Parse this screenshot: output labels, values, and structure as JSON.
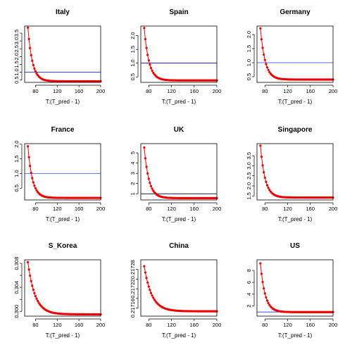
{
  "chart_data": [
    {
      "type": "scatter",
      "title": "Italy",
      "xlabel": "T:(T_pred - 1)",
      "ylabel": "",
      "xlim": [
        60,
        200
      ],
      "ylim": [
        0.35,
        3.95
      ],
      "xticks": [
        80,
        120,
        160,
        200
      ],
      "yticks": [
        0.5,
        1.0,
        1.5,
        2.0,
        2.5,
        3.0,
        3.5
      ],
      "ytick_labels": [
        "0.5",
        "1.0",
        "1.5",
        "2.0",
        "2.5",
        "3.0",
        "3.5"
      ],
      "ref_line": 1.0,
      "ref_line_color": "#3b4bd8",
      "x_start": 66,
      "x_end": 200,
      "y_start": 3.85,
      "y_end": 0.42,
      "decay": 0.12
    },
    {
      "type": "scatter",
      "title": "Spain",
      "xlabel": "T:(T_pred - 1)",
      "ylabel": "",
      "xlim": [
        66,
        200
      ],
      "ylim": [
        0.3,
        2.35
      ],
      "xticks": [
        80,
        120,
        160,
        200
      ],
      "yticks": [
        0.5,
        1.0,
        1.5,
        2.0
      ],
      "ytick_labels": [
        "0.5",
        "1.0",
        "1.5",
        "2.0"
      ],
      "ref_line": 1.0,
      "ref_line_color": "#1b1bb0",
      "x_start": 72,
      "x_end": 200,
      "y_start": 2.28,
      "y_end": 0.37,
      "decay": 0.12
    },
    {
      "type": "scatter",
      "title": "Germany",
      "xlabel": "T:(T_pred - 1)",
      "ylabel": "",
      "xlim": [
        66,
        200
      ],
      "ylim": [
        0.3,
        2.3
      ],
      "xticks": [
        80,
        120,
        160,
        200
      ],
      "yticks": [
        0.5,
        1.0,
        1.5,
        2.0
      ],
      "ytick_labels": [
        "0.5",
        "1.0",
        "1.5",
        "2.0"
      ],
      "ref_line": 1.0,
      "ref_line_color": "#5b6ff0",
      "x_start": 72,
      "x_end": 200,
      "y_start": 2.22,
      "y_end": 0.4,
      "decay": 0.12
    },
    {
      "type": "scatter",
      "title": "France",
      "xlabel": "T:(T_pred - 1)",
      "ylabel": "",
      "xlim": [
        60,
        200
      ],
      "ylim": [
        0.1,
        2.02
      ],
      "xticks": [
        80,
        120,
        160,
        200
      ],
      "yticks": [
        0.5,
        1.0,
        1.5,
        2.0
      ],
      "ytick_labels": [
        "0.5",
        "1.0",
        "1.5",
        "2.0"
      ],
      "ref_line": 1.0,
      "ref_line_color": "#6a7ef0",
      "x_start": 66,
      "x_end": 200,
      "y_start": 1.93,
      "y_end": 0.17,
      "decay": 0.12
    },
    {
      "type": "scatter",
      "title": "UK",
      "xlabel": "T:(T_pred - 1)",
      "ylabel": "",
      "xlim": [
        66,
        200
      ],
      "ylim": [
        0.4,
        5.9
      ],
      "xticks": [
        80,
        120,
        160,
        200
      ],
      "yticks": [
        1,
        2,
        3,
        4,
        5
      ],
      "ytick_labels": [
        "1",
        "2",
        "3",
        "4",
        "5"
      ],
      "ref_line": 1.0,
      "ref_line_color": "#1a1a3a",
      "x_start": 72,
      "x_end": 200,
      "y_start": 5.52,
      "y_end": 0.58,
      "decay": 0.12
    },
    {
      "type": "scatter",
      "title": "Singapore",
      "xlabel": "T:(T_pred - 1)",
      "ylabel": "",
      "xlim": [
        66,
        200
      ],
      "ylim": [
        1.3,
        4.1
      ],
      "xticks": [
        80,
        120,
        160,
        200
      ],
      "yticks": [
        1.5,
        2.0,
        2.5,
        3.0,
        3.5
      ],
      "ytick_labels": [
        "1.5",
        "2.0",
        "2.5",
        "3.0",
        "3.5"
      ],
      "x_start": 72,
      "x_end": 200,
      "y_start": 4.0,
      "y_end": 1.42,
      "decay": 0.12
    },
    {
      "type": "scatter",
      "title": "S_Korea",
      "xlabel": "T:(T_pred - 1)",
      "ylabel": "",
      "xlim": [
        60,
        200
      ],
      "ylim": [
        0.2992,
        0.3086
      ],
      "xticks": [
        80,
        120,
        160,
        200
      ],
      "yticks": [
        0.3,
        0.302,
        0.304,
        0.306,
        0.308
      ],
      "ytick_labels": [
        "0.300",
        "",
        "0.304",
        "",
        "0.308"
      ],
      "x_start": 66,
      "x_end": 200,
      "y_start": 0.3082,
      "y_end": 0.2995,
      "decay": 0.075
    },
    {
      "type": "scatter",
      "title": "China",
      "xlabel": "T:(T_pred - 1)",
      "ylabel": "",
      "xlim": [
        66,
        200
      ],
      "ylim": [
        0.217135,
        0.21731
      ],
      "xticks": [
        80,
        120,
        160,
        200
      ],
      "yticks": [
        0.21716,
        0.21719,
        0.21722,
        0.21725,
        0.21728
      ],
      "ytick_labels": [
        "0.21716",
        "",
        "0.21722",
        "",
        "0.21728"
      ],
      "x_start": 72,
      "x_end": 200,
      "y_start": 0.21729,
      "y_end": 0.21715,
      "decay": 0.075
    },
    {
      "type": "scatter",
      "title": "US",
      "xlabel": "T:(T_pred - 1)",
      "ylabel": "",
      "xlim": [
        66,
        200
      ],
      "ylim": [
        0.3,
        9.8
      ],
      "xticks": [
        80,
        120,
        160,
        200
      ],
      "yticks": [
        2,
        4,
        6,
        8
      ],
      "ytick_labels": [
        "2",
        "4",
        "6",
        "8"
      ],
      "ref_line": 1.0,
      "ref_line_color": "#3b4bd8",
      "x_start": 72,
      "x_end": 200,
      "y_start": 9.2,
      "y_end": 0.98,
      "decay": 0.12
    }
  ],
  "colors": {
    "points": "#ee0000",
    "line": "#ee0000",
    "axis": "#000000"
  }
}
